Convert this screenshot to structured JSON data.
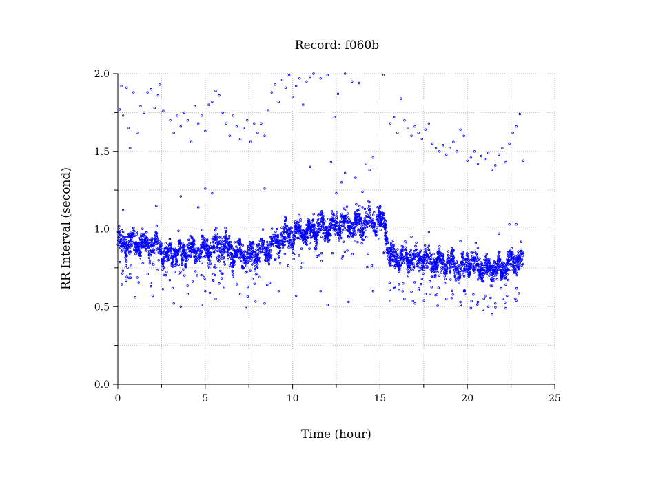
{
  "chart_data": {
    "type": "scatter",
    "title": "Record:  f060b",
    "xlabel": "Time (hour)",
    "ylabel": "RR Interval (second)",
    "xlim": [
      0,
      25
    ],
    "ylim": [
      0.0,
      2.0
    ],
    "xticks": [
      0,
      5,
      10,
      15,
      20,
      25
    ],
    "xtick_labels": [
      "0",
      "5",
      "10",
      "15",
      "20",
      "25"
    ],
    "yticks": [
      0.0,
      0.5,
      1.0,
      1.5,
      2.0
    ],
    "ytick_labels": [
      "0.0",
      "0.5",
      "1.0",
      "1.5",
      "2.0"
    ],
    "grid": true,
    "marker_color": "#0000ff",
    "series": [
      {
        "trend_x": [
          0.0,
          0.5,
          1.0,
          1.5,
          2.0,
          2.5,
          2.6,
          3.0,
          3.5,
          4.0,
          4.5,
          5.0,
          5.5,
          6.0,
          6.5,
          7.0,
          7.5,
          8.0,
          8.5,
          9.0,
          9.5,
          10.0,
          10.5,
          11.0,
          11.5,
          12.0,
          12.5,
          13.0,
          13.5,
          14.0,
          14.5,
          15.0,
          15.3,
          15.5,
          16.0,
          16.5,
          17.0,
          17.5,
          18.0,
          18.5,
          19.0,
          19.5,
          19.8,
          20.0,
          20.5,
          21.0,
          21.5,
          22.0,
          22.5,
          23.0,
          23.2
        ],
        "trend_y": [
          0.92,
          0.91,
          0.9,
          0.9,
          0.89,
          0.88,
          0.83,
          0.84,
          0.85,
          0.86,
          0.86,
          0.87,
          0.88,
          0.89,
          0.86,
          0.83,
          0.83,
          0.84,
          0.87,
          0.92,
          0.95,
          0.97,
          0.98,
          0.99,
          1.0,
          1.01,
          1.02,
          1.02,
          1.03,
          1.04,
          1.05,
          1.05,
          1.04,
          0.83,
          0.82,
          0.81,
          0.8,
          0.8,
          0.79,
          0.78,
          0.77,
          0.76,
          0.74,
          0.8,
          0.77,
          0.75,
          0.74,
          0.75,
          0.78,
          0.81,
          0.79
        ]
      }
    ],
    "outliers": [
      [
        0.1,
        1.77
      ],
      [
        0.2,
        1.92
      ],
      [
        0.3,
        1.73
      ],
      [
        0.5,
        1.91
      ],
      [
        0.6,
        1.65
      ],
      [
        0.7,
        1.52
      ],
      [
        0.9,
        1.88
      ],
      [
        1.1,
        1.62
      ],
      [
        1.3,
        1.79
      ],
      [
        1.5,
        1.75
      ],
      [
        1.7,
        1.88
      ],
      [
        1.9,
        1.9
      ],
      [
        2.1,
        1.78
      ],
      [
        2.3,
        1.86
      ],
      [
        2.4,
        1.93
      ],
      [
        2.6,
        1.76
      ],
      [
        3.0,
        1.7
      ],
      [
        3.2,
        1.62
      ],
      [
        3.4,
        1.73
      ],
      [
        3.6,
        1.66
      ],
      [
        3.8,
        1.75
      ],
      [
        4.0,
        1.7
      ],
      [
        4.2,
        1.56
      ],
      [
        4.4,
        1.79
      ],
      [
        4.6,
        1.68
      ],
      [
        4.8,
        1.73
      ],
      [
        5.0,
        1.63
      ],
      [
        5.2,
        1.8
      ],
      [
        5.4,
        1.82
      ],
      [
        5.6,
        1.89
      ],
      [
        5.8,
        1.86
      ],
      [
        6.0,
        1.75
      ],
      [
        6.2,
        1.68
      ],
      [
        6.4,
        1.6
      ],
      [
        6.6,
        1.73
      ],
      [
        6.8,
        1.66
      ],
      [
        7.0,
        1.58
      ],
      [
        7.2,
        1.65
      ],
      [
        7.4,
        1.7
      ],
      [
        7.6,
        1.56
      ],
      [
        7.8,
        1.68
      ],
      [
        8.0,
        1.62
      ],
      [
        8.2,
        1.68
      ],
      [
        8.4,
        1.6
      ],
      [
        8.6,
        1.76
      ],
      [
        8.8,
        1.88
      ],
      [
        9.0,
        1.93
      ],
      [
        9.2,
        1.82
      ],
      [
        9.4,
        1.96
      ],
      [
        9.6,
        1.91
      ],
      [
        9.8,
        1.99
      ],
      [
        10.0,
        1.85
      ],
      [
        10.2,
        1.92
      ],
      [
        10.4,
        1.97
      ],
      [
        10.6,
        1.8
      ],
      [
        10.8,
        1.95
      ],
      [
        11.0,
        1.98
      ],
      [
        11.2,
        2.0
      ],
      [
        11.6,
        1.97
      ],
      [
        12.0,
        1.99
      ],
      [
        12.4,
        1.72
      ],
      [
        12.6,
        1.87
      ],
      [
        13.0,
        2.0
      ],
      [
        13.4,
        1.95
      ],
      [
        13.8,
        1.94
      ],
      [
        15.2,
        1.99
      ],
      [
        15.6,
        1.68
      ],
      [
        15.8,
        1.72
      ],
      [
        16.0,
        1.62
      ],
      [
        16.2,
        1.84
      ],
      [
        16.4,
        1.7
      ],
      [
        16.6,
        1.65
      ],
      [
        16.8,
        1.6
      ],
      [
        17.0,
        1.66
      ],
      [
        17.2,
        1.62
      ],
      [
        17.4,
        1.58
      ],
      [
        17.6,
        1.64
      ],
      [
        17.8,
        1.68
      ],
      [
        18.0,
        1.55
      ],
      [
        18.2,
        1.52
      ],
      [
        18.4,
        1.5
      ],
      [
        18.6,
        1.54
      ],
      [
        18.8,
        1.48
      ],
      [
        19.0,
        1.52
      ],
      [
        19.2,
        1.56
      ],
      [
        19.4,
        1.5
      ],
      [
        19.6,
        1.64
      ],
      [
        19.8,
        1.6
      ],
      [
        20.0,
        1.44
      ],
      [
        20.2,
        1.46
      ],
      [
        20.4,
        1.5
      ],
      [
        20.6,
        1.42
      ],
      [
        20.8,
        1.47
      ],
      [
        21.0,
        1.45
      ],
      [
        21.2,
        1.49
      ],
      [
        21.4,
        1.38
      ],
      [
        21.6,
        1.41
      ],
      [
        21.8,
        1.48
      ],
      [
        22.0,
        1.52
      ],
      [
        22.2,
        1.43
      ],
      [
        22.4,
        1.55
      ],
      [
        22.6,
        1.62
      ],
      [
        22.8,
        1.66
      ],
      [
        23.0,
        1.74
      ],
      [
        23.2,
        1.44
      ],
      [
        11.0,
        1.4
      ],
      [
        12.2,
        1.43
      ],
      [
        12.8,
        1.3
      ],
      [
        13.0,
        1.36
      ],
      [
        13.6,
        1.33
      ],
      [
        14.0,
        1.24
      ],
      [
        14.2,
        1.42
      ],
      [
        14.4,
        1.38
      ],
      [
        14.6,
        1.46
      ],
      [
        12.5,
        1.23
      ],
      [
        8.4,
        1.26
      ],
      [
        3.6,
        1.21
      ],
      [
        4.6,
        1.14
      ],
      [
        5.0,
        1.26
      ],
      [
        5.4,
        1.23
      ],
      [
        2.2,
        1.15
      ],
      [
        0.3,
        1.12
      ],
      [
        1.0,
        0.56
      ],
      [
        2.0,
        0.57
      ],
      [
        3.2,
        0.52
      ],
      [
        3.6,
        0.5
      ],
      [
        4.0,
        0.58
      ],
      [
        4.8,
        0.51
      ],
      [
        5.0,
        0.6
      ],
      [
        5.6,
        0.55
      ],
      [
        7.0,
        0.58
      ],
      [
        8.4,
        0.52
      ],
      [
        9.2,
        0.6
      ],
      [
        10.2,
        0.57
      ],
      [
        11.6,
        0.6
      ],
      [
        12.0,
        0.51
      ],
      [
        13.2,
        0.53
      ],
      [
        14.6,
        0.6
      ],
      [
        15.8,
        0.62
      ],
      [
        16.4,
        0.55
      ],
      [
        17.0,
        0.52
      ],
      [
        17.6,
        0.58
      ],
      [
        18.8,
        0.55
      ],
      [
        19.6,
        0.53
      ],
      [
        20.2,
        0.49
      ],
      [
        20.6,
        0.53
      ],
      [
        21.2,
        0.5
      ],
      [
        21.6,
        0.52
      ],
      [
        22.2,
        0.49
      ],
      [
        22.8,
        0.54
      ],
      [
        14.0,
        1.14
      ],
      [
        15.0,
        1.15
      ],
      [
        16.8,
        0.95
      ],
      [
        17.8,
        0.98
      ],
      [
        19.6,
        0.92
      ],
      [
        20.6,
        0.88
      ],
      [
        21.8,
        0.97
      ],
      [
        22.4,
        1.03
      ],
      [
        22.8,
        1.03
      ]
    ]
  }
}
